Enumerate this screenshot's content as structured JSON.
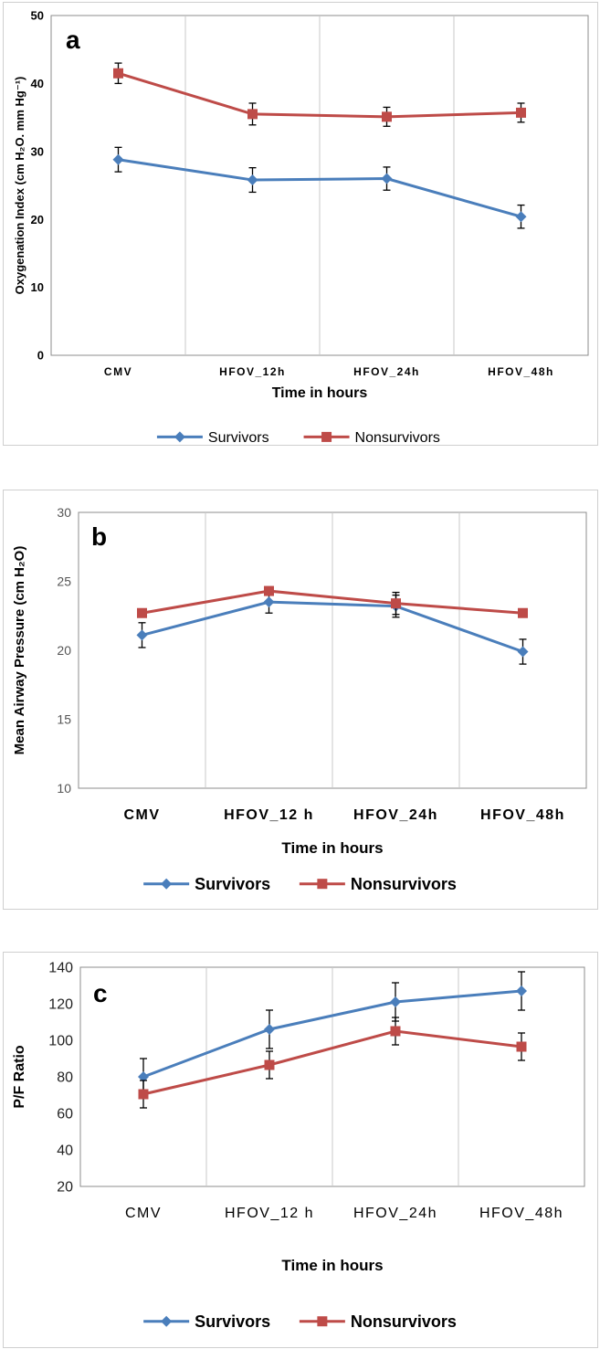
{
  "chart_data": [
    {
      "type": "line",
      "panel_letter": "a",
      "categories": [
        "CMV",
        "HFOV_12h",
        "HFOV_24h",
        "HFOV_48h"
      ],
      "series": [
        {
          "name": "Survivors",
          "color": "#4a7ebb",
          "marker": "diamond",
          "values": [
            28.8,
            25.8,
            26.0,
            20.4
          ],
          "errors": [
            1.8,
            1.8,
            1.7,
            1.7
          ]
        },
        {
          "name": "Nonsurvivors",
          "color": "#be4b48",
          "marker": "square",
          "values": [
            41.5,
            35.5,
            35.1,
            35.7
          ],
          "errors": [
            1.5,
            1.6,
            1.4,
            1.4
          ]
        }
      ],
      "ylim": [
        0,
        50
      ],
      "yticks": [
        0,
        10,
        20,
        30,
        40,
        50
      ],
      "ylabel": "Oxygenation Index (cm H₂O. mm Hg⁻¹)",
      "xlabel": "Time in hours",
      "legend": "bottom-center",
      "grid": "vertical"
    },
    {
      "type": "line",
      "panel_letter": "b",
      "categories": [
        "CMV",
        "HFOV_12 h",
        "HFOV_24h",
        "HFOV_48h"
      ],
      "series": [
        {
          "name": "Survivors",
          "color": "#4a7ebb",
          "marker": "diamond",
          "values": [
            21.1,
            23.5,
            23.2,
            19.9
          ],
          "errors": [
            0.9,
            0.8,
            0.8,
            0.9
          ]
        },
        {
          "name": "Nonsurvivors",
          "color": "#be4b48",
          "marker": "square",
          "values": [
            22.7,
            24.3,
            23.4,
            22.7
          ],
          "errors": [
            0.3,
            0.3,
            0.8,
            0.3
          ]
        }
      ],
      "ylim": [
        10,
        30
      ],
      "yticks": [
        10,
        15,
        20,
        25,
        30
      ],
      "ylabel": "Mean Airway Pressure (cm H₂O)",
      "xlabel": "Time in hours",
      "legend": "bottom-center",
      "grid": "vertical"
    },
    {
      "type": "line",
      "panel_letter": "c",
      "categories": [
        "CMV",
        "HFOV_12 h",
        "HFOV_24h",
        "HFOV_48h"
      ],
      "series": [
        {
          "name": "Survivors",
          "color": "#4a7ebb",
          "marker": "diamond",
          "values": [
            80,
            106,
            121,
            127
          ],
          "errors": [
            10,
            10.5,
            10.5,
            10.5
          ]
        },
        {
          "name": "Nonsurvivors",
          "color": "#be4b48",
          "marker": "square",
          "values": [
            70.5,
            86.5,
            105,
            96.5
          ],
          "errors": [
            7.5,
            7.5,
            7.5,
            7.5
          ]
        }
      ],
      "ylim": [
        20,
        140
      ],
      "yticks": [
        20,
        40,
        60,
        80,
        100,
        120,
        140
      ],
      "ylabel": "P/F Ratio",
      "xlabel": "Time in hours",
      "legend": "bottom-center",
      "grid": "vertical"
    }
  ]
}
